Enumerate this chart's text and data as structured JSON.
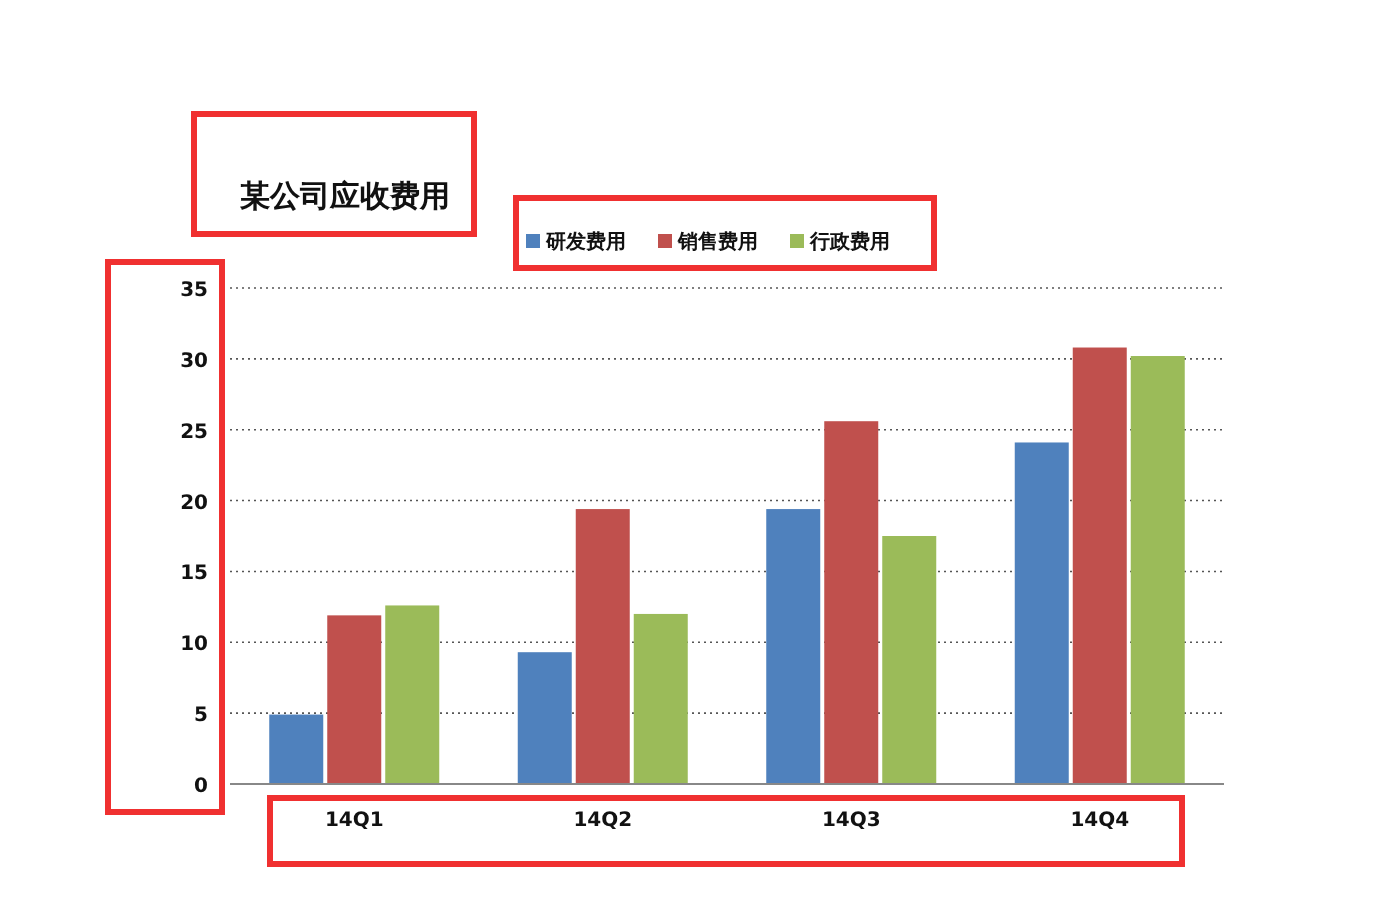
{
  "chart_data": {
    "type": "bar",
    "title": "某公司应收费用",
    "categories": [
      "14Q1",
      "14Q2",
      "14Q3",
      "14Q4"
    ],
    "series": [
      {
        "name": "研发费用",
        "color": "#4f81bd",
        "values": [
          4.9,
          9.3,
          19.4,
          24.1
        ]
      },
      {
        "name": "销售费用",
        "color": "#c0504d",
        "values": [
          11.9,
          19.4,
          25.6,
          30.8
        ]
      },
      {
        "name": "行政费用",
        "color": "#9bbb59",
        "values": [
          12.6,
          12.0,
          17.5,
          30.2
        ]
      }
    ],
    "ylim": [
      0,
      35
    ],
    "yticks": [
      0,
      5,
      10,
      15,
      20,
      25,
      30,
      35
    ],
    "grid": "y",
    "legend": "top"
  }
}
